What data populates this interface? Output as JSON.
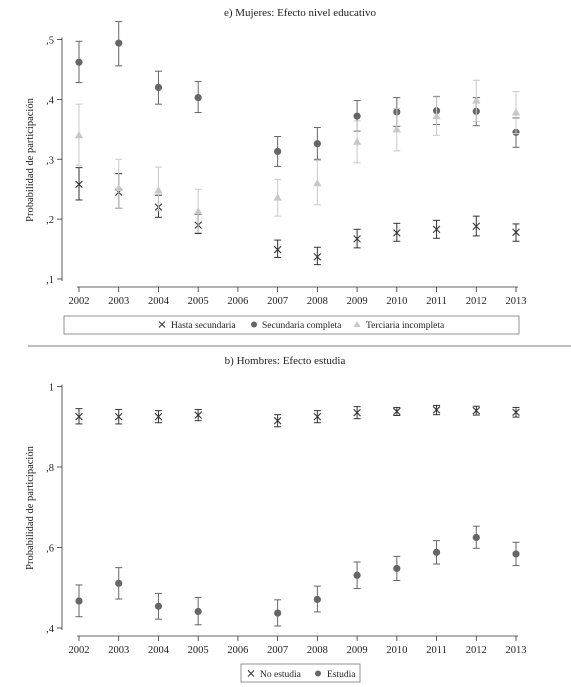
{
  "chart_data": [
    {
      "type": "scatter",
      "title": "e) Mujeres: Efecto nivel educativo",
      "xlabel": "",
      "ylabel": "Probabilidad de participación",
      "x": [
        2002,
        2003,
        2004,
        2005,
        2006,
        2007,
        2008,
        2009,
        2010,
        2011,
        2012,
        2013
      ],
      "x_tick_labels": [
        "2002",
        "2003",
        "2004",
        "2005",
        "2006",
        "2007",
        "2008",
        "2009",
        "2010",
        "2011",
        "2012",
        "2013"
      ],
      "ylim": [
        0.1,
        0.5
      ],
      "y_ticks": [
        0.1,
        0.2,
        0.3,
        0.4,
        0.5
      ],
      "y_tick_labels": [
        ",1",
        ",2",
        ",3",
        ",4",
        ",5"
      ],
      "grid": false,
      "legend_position": "bottom",
      "series": [
        {
          "name": "Hasta secundaria",
          "marker": "cross",
          "color": "#333333",
          "points": [
            {
              "x": 2002,
              "y": 0.258,
              "lo": 0.232,
              "hi": 0.286
            },
            {
              "x": 2003,
              "y": 0.245,
              "lo": 0.218,
              "hi": 0.276
            },
            {
              "x": 2004,
              "y": 0.22,
              "lo": 0.203,
              "hi": 0.24
            },
            {
              "x": 2005,
              "y": 0.19,
              "lo": 0.176,
              "hi": 0.208
            },
            {
              "x": 2007,
              "y": 0.149,
              "lo": 0.136,
              "hi": 0.165
            },
            {
              "x": 2008,
              "y": 0.137,
              "lo": 0.124,
              "hi": 0.153
            },
            {
              "x": 2009,
              "y": 0.167,
              "lo": 0.152,
              "hi": 0.183
            },
            {
              "x": 2010,
              "y": 0.177,
              "lo": 0.163,
              "hi": 0.193
            },
            {
              "x": 2011,
              "y": 0.183,
              "lo": 0.168,
              "hi": 0.198
            },
            {
              "x": 2012,
              "y": 0.188,
              "lo": 0.172,
              "hi": 0.205
            },
            {
              "x": 2013,
              "y": 0.178,
              "lo": 0.163,
              "hi": 0.192
            }
          ]
        },
        {
          "name": "Secundaria completa",
          "marker": "circle",
          "color": "#666666",
          "points": [
            {
              "x": 2002,
              "y": 0.462,
              "lo": 0.428,
              "hi": 0.497
            },
            {
              "x": 2003,
              "y": 0.494,
              "lo": 0.456,
              "hi": 0.53
            },
            {
              "x": 2004,
              "y": 0.42,
              "lo": 0.392,
              "hi": 0.447
            },
            {
              "x": 2005,
              "y": 0.403,
              "lo": 0.378,
              "hi": 0.43
            },
            {
              "x": 2007,
              "y": 0.313,
              "lo": 0.288,
              "hi": 0.338
            },
            {
              "x": 2008,
              "y": 0.326,
              "lo": 0.3,
              "hi": 0.353
            },
            {
              "x": 2009,
              "y": 0.372,
              "lo": 0.347,
              "hi": 0.398
            },
            {
              "x": 2010,
              "y": 0.379,
              "lo": 0.355,
              "hi": 0.403
            },
            {
              "x": 2011,
              "y": 0.381,
              "lo": 0.358,
              "hi": 0.405
            },
            {
              "x": 2012,
              "y": 0.38,
              "lo": 0.356,
              "hi": 0.403
            },
            {
              "x": 2013,
              "y": 0.345,
              "lo": 0.32,
              "hi": 0.369
            }
          ]
        },
        {
          "name": "Terciaria incompleta",
          "marker": "triangle",
          "color": "#c8c8c8",
          "points": [
            {
              "x": 2002,
              "y": 0.34,
              "lo": 0.29,
              "hi": 0.392
            },
            {
              "x": 2003,
              "y": 0.252,
              "lo": 0.218,
              "hi": 0.3
            },
            {
              "x": 2004,
              "y": 0.248,
              "lo": 0.214,
              "hi": 0.287
            },
            {
              "x": 2005,
              "y": 0.213,
              "lo": 0.178,
              "hi": 0.25
            },
            {
              "x": 2007,
              "y": 0.236,
              "lo": 0.205,
              "hi": 0.266
            },
            {
              "x": 2008,
              "y": 0.26,
              "lo": 0.224,
              "hi": 0.298
            },
            {
              "x": 2009,
              "y": 0.329,
              "lo": 0.294,
              "hi": 0.364
            },
            {
              "x": 2010,
              "y": 0.35,
              "lo": 0.314,
              "hi": 0.385
            },
            {
              "x": 2011,
              "y": 0.372,
              "lo": 0.34,
              "hi": 0.404
            },
            {
              "x": 2012,
              "y": 0.398,
              "lo": 0.363,
              "hi": 0.432
            },
            {
              "x": 2013,
              "y": 0.378,
              "lo": 0.343,
              "hi": 0.413
            }
          ]
        }
      ]
    },
    {
      "type": "scatter",
      "title": "b) Hombres: Efecto estudia",
      "xlabel": "",
      "ylabel": "Probabilidad de participación",
      "x": [
        2002,
        2003,
        2004,
        2005,
        2006,
        2007,
        2008,
        2009,
        2010,
        2011,
        2012,
        2013
      ],
      "x_tick_labels": [
        "2002",
        "2003",
        "2004",
        "2005",
        "2006",
        "2007",
        "2008",
        "2009",
        "2010",
        "2011",
        "2012",
        "2013"
      ],
      "ylim": [
        0.4,
        1.0
      ],
      "y_ticks": [
        0.4,
        0.6,
        0.8,
        1.0
      ],
      "y_tick_labels": [
        ",4",
        ",6",
        ",8",
        "1"
      ],
      "grid": false,
      "legend_position": "bottom",
      "series": [
        {
          "name": "No estudia",
          "marker": "cross",
          "color": "#333333",
          "points": [
            {
              "x": 2002,
              "y": 0.925,
              "lo": 0.907,
              "hi": 0.945
            },
            {
              "x": 2003,
              "y": 0.925,
              "lo": 0.907,
              "hi": 0.943
            },
            {
              "x": 2004,
              "y": 0.925,
              "lo": 0.91,
              "hi": 0.94
            },
            {
              "x": 2005,
              "y": 0.929,
              "lo": 0.915,
              "hi": 0.943
            },
            {
              "x": 2007,
              "y": 0.915,
              "lo": 0.9,
              "hi": 0.93
            },
            {
              "x": 2008,
              "y": 0.925,
              "lo": 0.91,
              "hi": 0.94
            },
            {
              "x": 2009,
              "y": 0.935,
              "lo": 0.92,
              "hi": 0.95
            },
            {
              "x": 2010,
              "y": 0.938,
              "lo": 0.928,
              "hi": 0.948
            },
            {
              "x": 2011,
              "y": 0.942,
              "lo": 0.93,
              "hi": 0.953
            },
            {
              "x": 2012,
              "y": 0.94,
              "lo": 0.929,
              "hi": 0.951
            },
            {
              "x": 2013,
              "y": 0.936,
              "lo": 0.924,
              "hi": 0.948
            }
          ]
        },
        {
          "name": "Estudia",
          "marker": "circle",
          "color": "#666666",
          "points": [
            {
              "x": 2002,
              "y": 0.467,
              "lo": 0.428,
              "hi": 0.507
            },
            {
              "x": 2003,
              "y": 0.511,
              "lo": 0.472,
              "hi": 0.55
            },
            {
              "x": 2004,
              "y": 0.454,
              "lo": 0.422,
              "hi": 0.486
            },
            {
              "x": 2005,
              "y": 0.441,
              "lo": 0.408,
              "hi": 0.476
            },
            {
              "x": 2007,
              "y": 0.437,
              "lo": 0.405,
              "hi": 0.47
            },
            {
              "x": 2008,
              "y": 0.471,
              "lo": 0.44,
              "hi": 0.504
            },
            {
              "x": 2009,
              "y": 0.531,
              "lo": 0.498,
              "hi": 0.564
            },
            {
              "x": 2010,
              "y": 0.548,
              "lo": 0.518,
              "hi": 0.578
            },
            {
              "x": 2011,
              "y": 0.588,
              "lo": 0.559,
              "hi": 0.617
            },
            {
              "x": 2012,
              "y": 0.625,
              "lo": 0.598,
              "hi": 0.653
            },
            {
              "x": 2013,
              "y": 0.584,
              "lo": 0.555,
              "hi": 0.613
            }
          ]
        }
      ]
    }
  ]
}
